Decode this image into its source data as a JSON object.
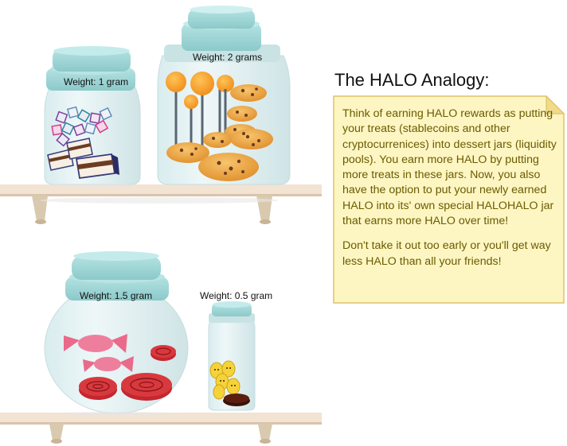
{
  "jars": {
    "top_small": {
      "label": "Weight: 1 gram"
    },
    "top_large": {
      "label": "Weight: 2 grams"
    },
    "bottom_round": {
      "label": "Weight: 1.5 gram"
    },
    "bottom_small": {
      "label": "Weight: 0.5 gram"
    }
  },
  "note": {
    "title": "The HALO Analogy:",
    "paragraph1": "Think of earning HALO rewards as putting your treats (stablecoins and other cryptocurrenices) into dessert jars (liquidity pools). You earn more HALO by putting more treats in these jars. Now, you also have the option to put your newly earned HALO into its' own special HALOHALO jar that earns more HALO over time!",
    "paragraph2": "Don't take it out too early or you'll get way less HALO than all your friends!"
  },
  "colors": {
    "lid": "#9fd6d6",
    "glass": "#e4f1f2",
    "shelf": "#f1e2d0",
    "note_fill": "#fdf6c3",
    "note_border": "#e0c06a",
    "note_text": "#6b5b00"
  }
}
